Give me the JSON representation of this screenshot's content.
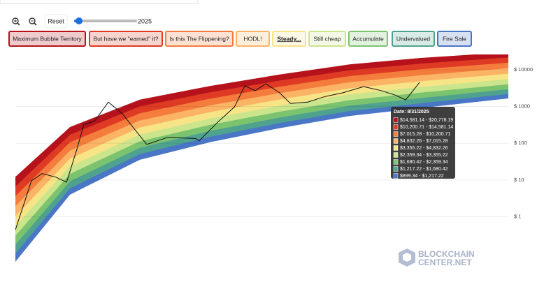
{
  "chart_data": {
    "type": "rainbow",
    "slider_year": 2025,
    "reset_label": "Reset",
    "log_scale": true,
    "grid": true,
    "xlim": [
      2010.5,
      2029.0
    ],
    "ylim": [
      0.06,
      26000
    ],
    "yticks": [
      {
        "value": 10000,
        "label": "$ 10000"
      },
      {
        "value": 1000,
        "label": "$ 1000"
      },
      {
        "value": 100,
        "label": "$ 100"
      },
      {
        "value": 10,
        "label": "$ 10"
      },
      {
        "value": 1,
        "label": "$ 1"
      }
    ],
    "band_x": [
      2010.5,
      2012.55,
      2015.17,
      2017.8,
      2020.42,
      2023.04,
      2025.67,
      2029.0
    ],
    "floor": [
      0.06,
      4,
      35.5,
      107,
      257,
      550,
      899.34,
      1660
    ],
    "series": [
      {
        "name": "Maximum Bubble Territory",
        "color": "#b5121b",
        "values": [
          12.2,
          276,
          1538,
          3614,
          7396,
          13964,
          20778.19,
          29854
        ]
      },
      {
        "name": "But have we \"earned\" it?",
        "color": "#de3a24",
        "values": [
          6.68,
          171,
          1005,
          2427,
          5070,
          9683,
          14581.14,
          21528
        ]
      },
      {
        "name": "Is this The Flippening?",
        "color": "#f47c3c",
        "values": [
          3.66,
          106,
          655,
          1629,
          3459,
          6714,
          10200.71,
          15524
        ]
      },
      {
        "name": "HODL!",
        "color": "#fbb466",
        "values": [
          1.94,
          63.7,
          417,
          1069,
          2312,
          4560,
          7015.28,
          10990
        ]
      },
      {
        "name": "Steady...",
        "color": "#f7e487",
        "values": [
          1.03,
          38.5,
          267,
          705,
          1552,
          3105,
          4832.26,
          7798
        ]
      },
      {
        "name": "Still cheap",
        "color": "#cbe58c",
        "values": [
          0.558,
          23.5,
          172,
          469,
          1052,
          2133,
          3355.22,
          5572
        ]
      },
      {
        "name": "Accumulate",
        "color": "#7cc36f",
        "values": [
          0.308,
          14.7,
          113,
          316,
          721,
          1486,
          2359.34,
          4027
        ]
      },
      {
        "name": "Undervalued",
        "color": "#4fa38e",
        "values": [
          0.173,
          9.25,
          75,
          216,
          501,
          1045,
          1680.42,
          2944
        ]
      },
      {
        "name": "Fire Sale",
        "color": "#4a76c6",
        "values": [
          0.1,
          5.98,
          50.9,
          150,
          355,
          750,
          1217.22,
          2193
        ]
      }
    ],
    "price": {
      "color": "#111111",
      "x": [
        2010.5,
        2010.84,
        2011.1,
        2011.5,
        2012.02,
        2012.42,
        2012.81,
        2013.07,
        2013.47,
        2013.99,
        2014.52,
        2015.04,
        2015.43,
        2016.22,
        2017.27,
        2017.4,
        2018.06,
        2018.72,
        2019.11,
        2019.5,
        2019.9,
        2020.42,
        2020.82,
        2021.47,
        2022.13,
        2022.78,
        2023.57,
        2024.23,
        2024.75,
        2025.15,
        2025.67
      ],
      "values": [
        0.44,
        2.5,
        9.5,
        15,
        12,
        8.7,
        69,
        324,
        400,
        1320,
        630,
        210,
        93,
        145,
        134,
        117,
        355,
        970,
        3640,
        2700,
        4150,
        2350,
        1210,
        1320,
        1870,
        2350,
        3470,
        2700,
        2040,
        1510,
        4540
      ]
    },
    "tooltip": {
      "title": "Date: 8/31/2025",
      "rows": [
        "$14,581.14 - $20,778.19",
        "$10,200.71 - $14,581.14",
        "$7,015.28 - $10,200.71",
        "$4,832.26 - $7,015.28",
        "$3,355.22 - $4,832.26",
        "$2,359.34 - $3,355.22",
        "$1,680.42 - $2,359.34",
        "$1,217.22 - $1,680.42",
        "$899.34 - $1,217.22"
      ]
    },
    "watermark": [
      "BLOCKCHAIN",
      "CENTER.NET"
    ]
  }
}
